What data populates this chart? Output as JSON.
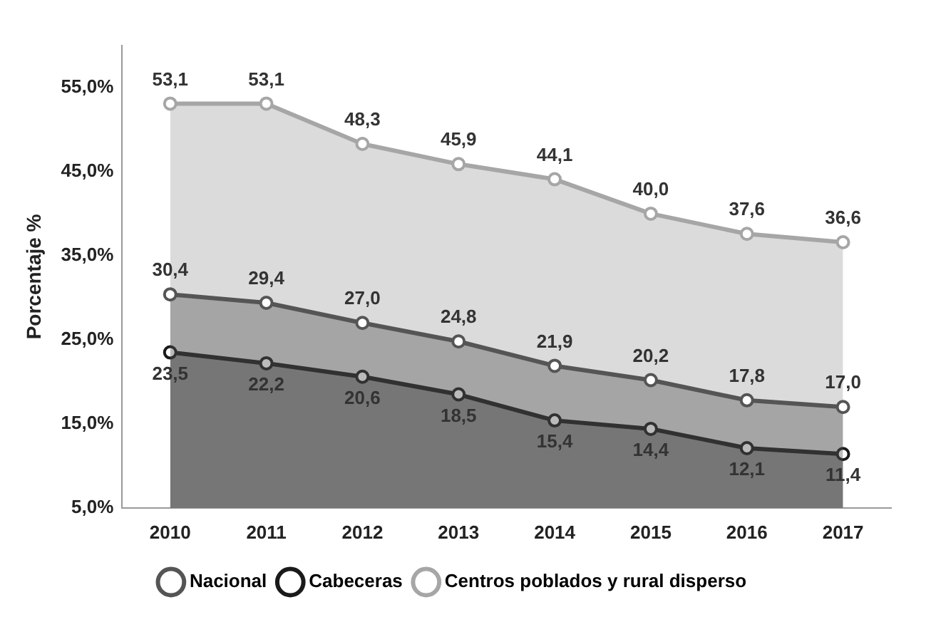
{
  "chart_data": {
    "type": "area",
    "ylabel": "Porcentaje %",
    "categories": [
      "2010",
      "2011",
      "2012",
      "2013",
      "2014",
      "2015",
      "2016",
      "2017"
    ],
    "series": [
      {
        "name": "Nacional",
        "color": "#555555",
        "values": [
          30.4,
          29.4,
          27.0,
          24.8,
          21.9,
          20.2,
          17.8,
          17.0
        ],
        "value_labels": [
          "30,4",
          "29,4",
          "27,0",
          "24,8",
          "21,9",
          "20,2",
          "17,8",
          "17,0"
        ]
      },
      {
        "name": "Cabeceras",
        "color": "#1a1a1a",
        "values": [
          23.5,
          22.2,
          20.6,
          18.5,
          15.4,
          14.4,
          12.1,
          11.4
        ],
        "value_labels": [
          "23,5",
          "22,2",
          "20,6",
          "18,5",
          "15,4",
          "14,4",
          "12,1",
          "11,4"
        ]
      },
      {
        "name": "Centros poblados y rural disperso",
        "color": "#a6a6a6",
        "values": [
          53.1,
          53.1,
          48.3,
          45.9,
          44.1,
          40.0,
          37.6,
          36.6
        ],
        "value_labels": [
          "53,1",
          "53,1",
          "48,3",
          "45,9",
          "44,1",
          "40,0",
          "37,6",
          "36,6"
        ]
      }
    ],
    "ylim": [
      5,
      60
    ],
    "yticks": [
      {
        "value": 5,
        "label": "5,0%"
      },
      {
        "value": 15,
        "label": "15,0%"
      },
      {
        "value": 25,
        "label": "25,0%"
      },
      {
        "value": 35,
        "label": "35,0%"
      },
      {
        "value": 45,
        "label": "45,0%"
      },
      {
        "value": 55,
        "label": "55,0%"
      }
    ],
    "grid": false,
    "legend": "bottom",
    "marker": "circle",
    "line_style": "solid"
  }
}
